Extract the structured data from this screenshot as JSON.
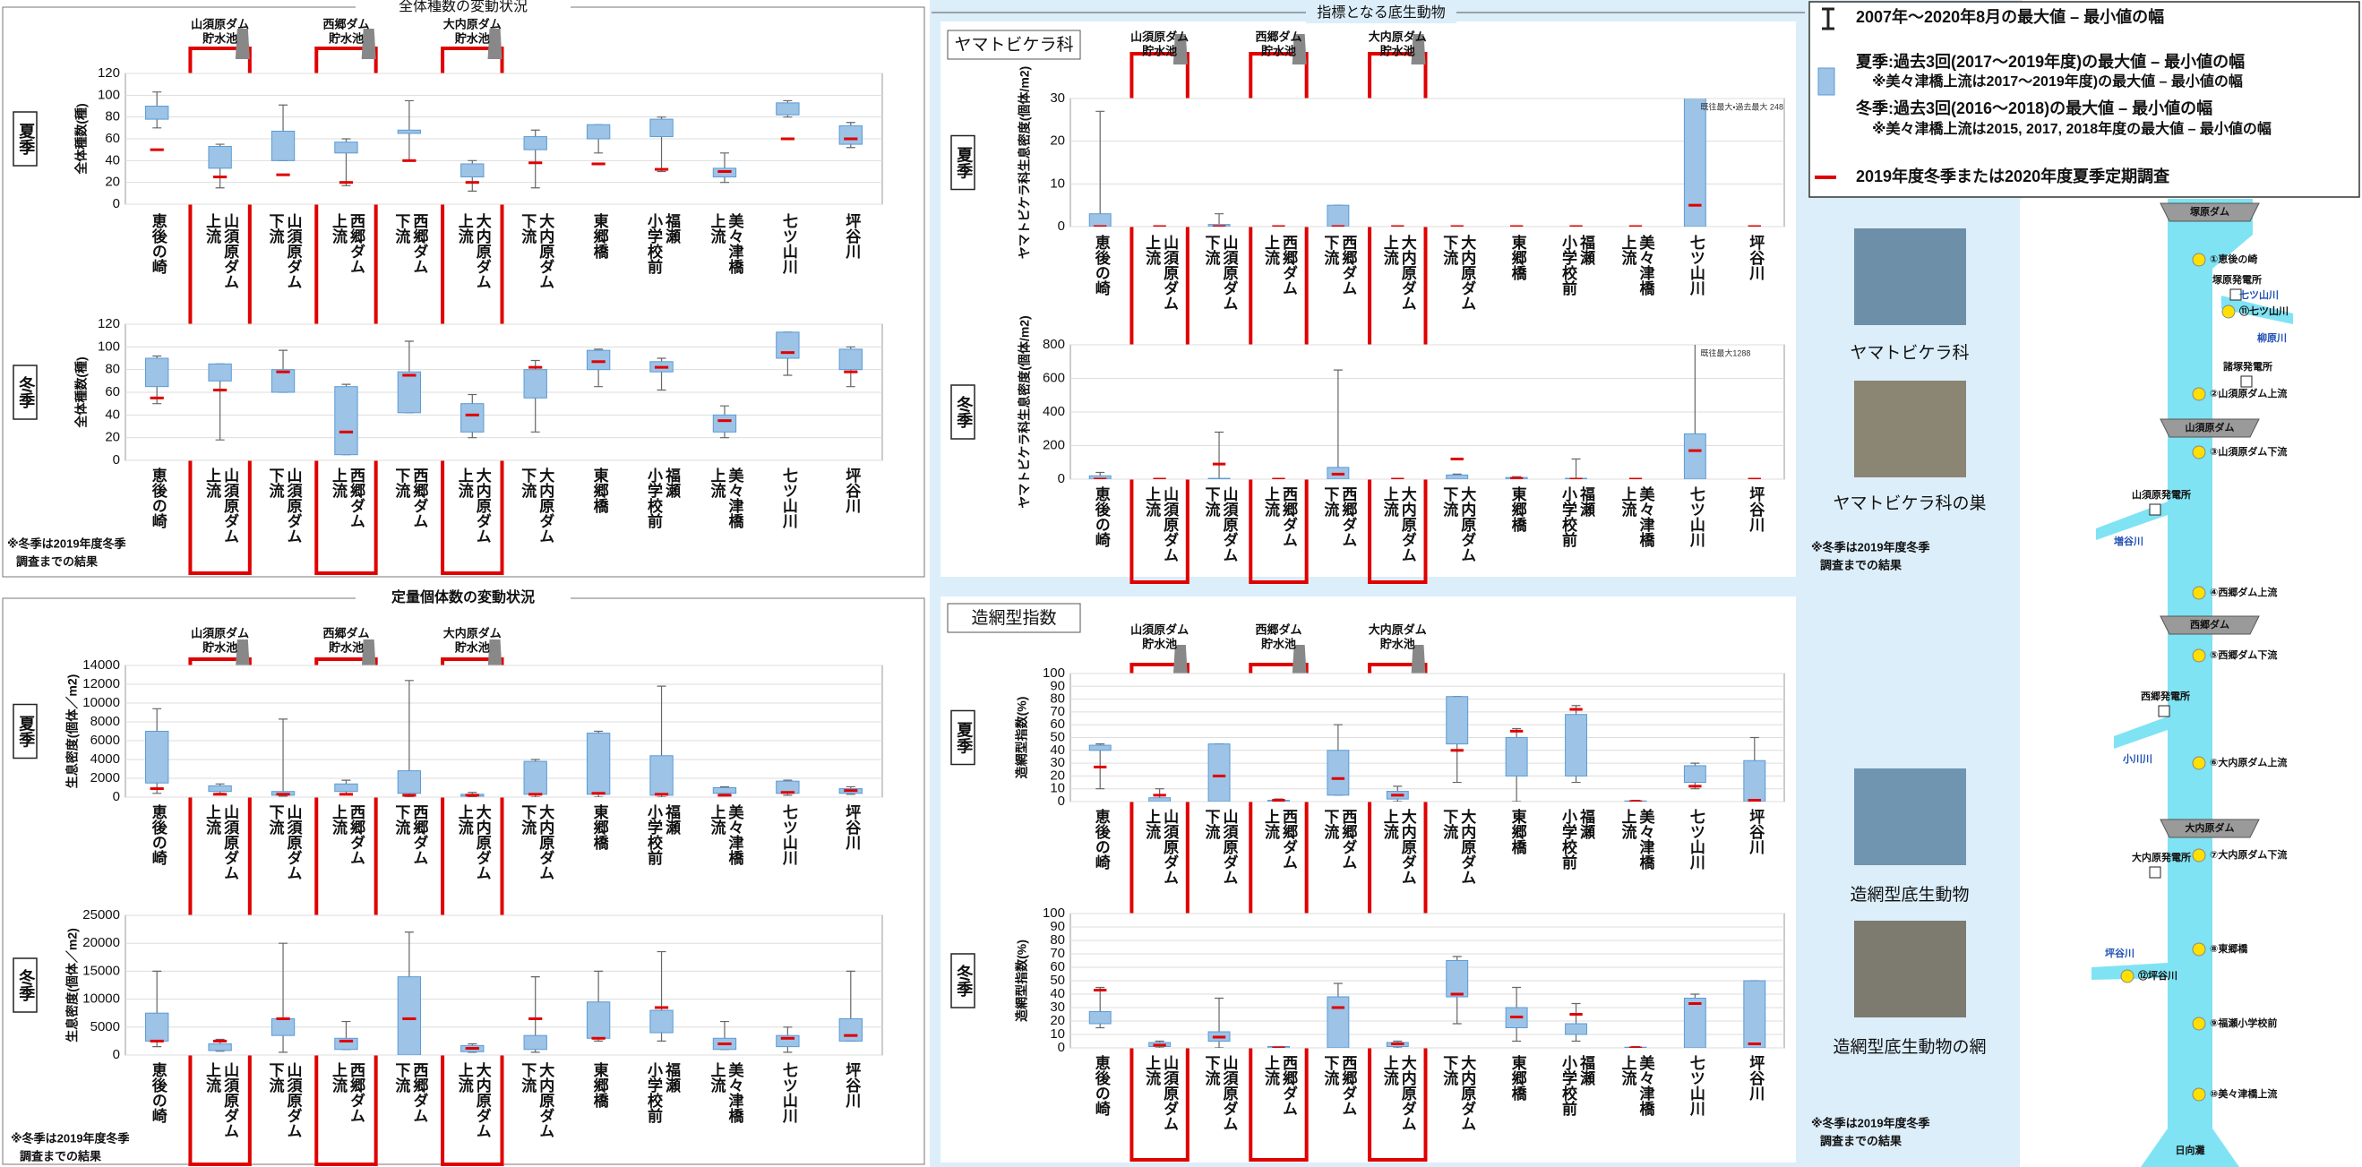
{
  "header": "指標となる底生動物",
  "groups": [
    {
      "title": "全体種数の変動状況",
      "reservoirs": [
        [
          "山須原ダム",
          "貯水池"
        ],
        [
          "西郷ダム",
          "貯水池"
        ],
        [
          "大内原ダム",
          "貯水池"
        ]
      ],
      "note": [
        "※冬季は2019年度冬季",
        "調査までの結果"
      ]
    },
    {
      "title": "定量個体数の変動状況",
      "reservoirs": [
        [
          "山須原ダム",
          "貯水池"
        ],
        [
          "西郷ダム",
          "貯水池"
        ],
        [
          "大内原ダム",
          "貯水池"
        ]
      ],
      "note": [
        "※冬季は2019年度冬季",
        "調査までの結果"
      ]
    },
    {
      "title": "ヤマトビケラ科",
      "reservoirs": [
        [
          "山須原ダム",
          "貯水池"
        ],
        [
          "西郷ダム",
          "貯水池"
        ],
        [
          "大内原ダム",
          "貯水池"
        ]
      ],
      "note": [
        "※冬季は2019年度冬季",
        "調査までの結果"
      ]
    },
    {
      "title": "造網型指数",
      "reservoirs": [
        [
          "山須原ダム",
          "貯水池"
        ],
        [
          "西郷ダム",
          "貯水池"
        ],
        [
          "大内原ダム",
          "貯水池"
        ]
      ],
      "note": [
        "※冬季は2019年度冬季",
        "調査までの結果"
      ]
    }
  ],
  "chart_data": [
    {
      "type": "range",
      "season": "夏季",
      "ylabel": "全体種数(種)",
      "categories": [
        [
          "恵後の崎"
        ],
        [
          "山須原ダム",
          "上流"
        ],
        [
          "山須原ダム",
          "下流"
        ],
        [
          "西郷ダム",
          "上流"
        ],
        [
          "西郷ダム",
          "下流"
        ],
        [
          "大内原ダム",
          "上流"
        ],
        [
          "大内原ダム",
          "下流"
        ],
        [
          "東郷橋"
        ],
        [
          "福瀬",
          "小学校前"
        ],
        [
          "美々津橋",
          "上流"
        ],
        [
          "七ツ山川"
        ],
        [
          "坪谷川"
        ]
      ],
      "ylim": [
        0,
        120
      ],
      "yticks": [
        0,
        20,
        40,
        60,
        80,
        100,
        120
      ],
      "grid": true,
      "min": [
        70,
        15,
        40,
        17,
        40,
        12,
        15,
        47,
        30,
        20,
        80,
        52
      ],
      "max": [
        103,
        55,
        91,
        60,
        95,
        40,
        68,
        73,
        80,
        47,
        95,
        75
      ],
      "low": [
        78,
        33,
        40,
        47,
        65,
        25,
        50,
        60,
        62,
        25,
        82,
        55
      ],
      "high": [
        90,
        53,
        67,
        57,
        68,
        37,
        62,
        73,
        78,
        33,
        93,
        72
      ],
      "current": [
        50,
        25,
        27,
        20,
        40,
        20,
        38,
        37,
        32,
        30,
        60,
        60
      ],
      "colors": {
        "box": "#9dc3e6",
        "box_edge": "#5b9bd5",
        "whisker": "#666666",
        "current": "#e00000"
      }
    },
    {
      "type": "range",
      "season": "冬季",
      "ylabel": "全体種数(種)",
      "categories": [
        [
          "恵後の崎"
        ],
        [
          "山須原ダム",
          "上流"
        ],
        [
          "山須原ダム",
          "下流"
        ],
        [
          "西郷ダム",
          "上流"
        ],
        [
          "西郷ダム",
          "下流"
        ],
        [
          "大内原ダム",
          "上流"
        ],
        [
          "大内原ダム",
          "下流"
        ],
        [
          "東郷橋"
        ],
        [
          "福瀬",
          "小学校前"
        ],
        [
          "美々津橋",
          "上流"
        ],
        [
          "七ツ山川"
        ],
        [
          "坪谷川"
        ]
      ],
      "ylim": [
        0,
        120
      ],
      "yticks": [
        0,
        20,
        40,
        60,
        80,
        100,
        120
      ],
      "grid": true,
      "min": [
        50,
        18,
        60,
        5,
        42,
        20,
        25,
        65,
        62,
        20,
        75,
        65
      ],
      "max": [
        92,
        85,
        97,
        67,
        105,
        58,
        88,
        98,
        90,
        48,
        113,
        100
      ],
      "low": [
        65,
        70,
        60,
        5,
        42,
        25,
        55,
        80,
        78,
        25,
        90,
        80
      ],
      "high": [
        90,
        85,
        80,
        65,
        78,
        50,
        80,
        97,
        87,
        40,
        113,
        98
      ],
      "current": [
        55,
        62,
        78,
        25,
        75,
        40,
        82,
        87,
        82,
        35,
        95,
        78
      ],
      "colors": {
        "box": "#9dc3e6",
        "box_edge": "#5b9bd5",
        "whisker": "#666666",
        "current": "#e00000"
      }
    },
    {
      "type": "range",
      "season": "夏季",
      "ylabel": "生息密度(個体／m2)",
      "categories": [
        [
          "恵後の崎"
        ],
        [
          "山須原ダム",
          "上流"
        ],
        [
          "山須原ダム",
          "下流"
        ],
        [
          "西郷ダム",
          "上流"
        ],
        [
          "西郷ダム",
          "下流"
        ],
        [
          "大内原ダム",
          "上流"
        ],
        [
          "大内原ダム",
          "下流"
        ],
        [
          "東郷橋"
        ],
        [
          "福瀬",
          "小学校前"
        ],
        [
          "美々津橋",
          "上流"
        ],
        [
          "七ツ山川"
        ],
        [
          "坪谷川"
        ]
      ],
      "ylim": [
        0,
        14000
      ],
      "yticks": [
        0,
        2000,
        4000,
        6000,
        8000,
        10000,
        12000,
        14000
      ],
      "grid": true,
      "min": [
        400,
        400,
        100,
        300,
        0,
        0,
        0,
        0,
        0,
        400,
        200,
        300
      ],
      "max": [
        9400,
        1400,
        8300,
        1800,
        12400,
        500,
        4000,
        7000,
        11800,
        1100,
        1800,
        1100
      ],
      "low": [
        1500,
        600,
        200,
        600,
        400,
        100,
        300,
        300,
        200,
        400,
        400,
        400
      ],
      "high": [
        7000,
        1200,
        600,
        1400,
        2800,
        300,
        3800,
        6800,
        4400,
        1000,
        1700,
        900
      ],
      "current": [
        900,
        300,
        300,
        300,
        200,
        200,
        300,
        400,
        300,
        200,
        500,
        700
      ],
      "colors": {
        "box": "#9dc3e6",
        "box_edge": "#5b9bd5",
        "whisker": "#666666",
        "current": "#e00000"
      }
    },
    {
      "type": "range",
      "season": "冬季",
      "ylabel": "生息密度(個体／m2)",
      "categories": [
        [
          "恵後の崎"
        ],
        [
          "山須原ダム",
          "上流"
        ],
        [
          "山須原ダム",
          "下流"
        ],
        [
          "西郷ダム",
          "上流"
        ],
        [
          "西郷ダム",
          "下流"
        ],
        [
          "大内原ダム",
          "上流"
        ],
        [
          "大内原ダム",
          "下流"
        ],
        [
          "東郷橋"
        ],
        [
          "福瀬",
          "小学校前"
        ],
        [
          "美々津橋",
          "上流"
        ],
        [
          "七ツ山川"
        ],
        [
          "坪谷川"
        ]
      ],
      "ylim": [
        0,
        25000
      ],
      "yticks": [
        0,
        5000,
        10000,
        15000,
        20000,
        25000
      ],
      "grid": true,
      "min": [
        1500,
        700,
        500,
        1000,
        500,
        500,
        500,
        2500,
        2500,
        1000,
        500,
        2500
      ],
      "max": [
        15000,
        2800,
        20000,
        6000,
        22000,
        2000,
        14000,
        15000,
        18500,
        6000,
        5000,
        15000
      ],
      "low": [
        2500,
        800,
        3500,
        1000,
        0,
        600,
        1000,
        3000,
        4000,
        1000,
        1500,
        2500
      ],
      "high": [
        7500,
        2000,
        6500,
        3000,
        14000,
        1700,
        3500,
        9500,
        8000,
        3000,
        3500,
        6500
      ],
      "current": [
        2500,
        2500,
        6500,
        2500,
        6500,
        1200,
        6500,
        3000,
        8500,
        2000,
        3000,
        3500
      ],
      "colors": {
        "box": "#9dc3e6",
        "box_edge": "#5b9bd5",
        "whisker": "#666666",
        "current": "#e00000"
      }
    },
    {
      "type": "range",
      "season": "夏季",
      "ylabel": "ヤマトビケラ科生息密度(個体/m2)",
      "categories": [
        [
          "恵後の崎"
        ],
        [
          "山須原ダム",
          "上流"
        ],
        [
          "山須原ダム",
          "下流"
        ],
        [
          "西郷ダム",
          "上流"
        ],
        [
          "西郷ダム",
          "下流"
        ],
        [
          "大内原ダム",
          "上流"
        ],
        [
          "大内原ダム",
          "下流"
        ],
        [
          "東郷橋"
        ],
        [
          "福瀬",
          "小学校前"
        ],
        [
          "美々津橋",
          "上流"
        ],
        [
          "七ツ山川"
        ],
        [
          "坪谷川"
        ]
      ],
      "ylim": [
        0,
        30
      ],
      "yticks": [
        0,
        10,
        20,
        30
      ],
      "grid": true,
      "min": [
        0,
        0,
        0,
        0,
        0,
        0,
        0,
        0,
        0,
        0,
        0,
        0
      ],
      "max": [
        27,
        0,
        3,
        0,
        5,
        0,
        0,
        0,
        0,
        0,
        248,
        0
      ],
      "low": [
        0,
        0,
        0,
        0,
        0,
        0,
        0,
        0,
        0,
        0,
        0,
        0
      ],
      "high": [
        3,
        0,
        0.5,
        0,
        5,
        0,
        0,
        0,
        0,
        0,
        248,
        0
      ],
      "current": [
        0,
        0,
        0,
        0,
        0,
        0,
        0,
        0,
        0,
        0,
        5,
        0
      ],
      "annotation": "既往最大・過去最大 248",
      "colors": {
        "box": "#9dc3e6",
        "box_edge": "#5b9bd5",
        "whisker": "#666666",
        "current": "#e00000"
      }
    },
    {
      "type": "range",
      "season": "冬季",
      "ylabel": "ヤマトビケラ科生息密度(個体/m2)",
      "categories": [
        [
          "恵後の崎"
        ],
        [
          "山須原ダム",
          "上流"
        ],
        [
          "山須原ダム",
          "下流"
        ],
        [
          "西郷ダム",
          "上流"
        ],
        [
          "西郷ダム",
          "下流"
        ],
        [
          "大内原ダム",
          "上流"
        ],
        [
          "大内原ダム",
          "下流"
        ],
        [
          "東郷橋"
        ],
        [
          "福瀬",
          "小学校前"
        ],
        [
          "美々津橋",
          "上流"
        ],
        [
          "七ツ山川"
        ],
        [
          "坪谷川"
        ]
      ],
      "ylim": [
        0,
        800
      ],
      "yticks": [
        0,
        200,
        400,
        600,
        800
      ],
      "grid": true,
      "min": [
        0,
        0,
        0,
        0,
        0,
        0,
        0,
        0,
        0,
        0,
        0,
        0
      ],
      "max": [
        40,
        0,
        280,
        0,
        650,
        0,
        30,
        15,
        120,
        0,
        1288,
        0
      ],
      "low": [
        0,
        0,
        0,
        0,
        0,
        0,
        0,
        0,
        0,
        0,
        0,
        0
      ],
      "high": [
        20,
        0,
        5,
        0,
        70,
        0,
        25,
        10,
        5,
        0,
        270,
        0
      ],
      "current": [
        0,
        0,
        90,
        0,
        30,
        0,
        120,
        5,
        0,
        0,
        170,
        0
      ],
      "annotation": "既往最大1288",
      "colors": {
        "box": "#9dc3e6",
        "box_edge": "#5b9bd5",
        "whisker": "#666666",
        "current": "#e00000"
      }
    },
    {
      "type": "range",
      "season": "夏季",
      "ylabel": "造網型指数(%)",
      "categories": [
        [
          "恵後の崎"
        ],
        [
          "山須原ダム",
          "上流"
        ],
        [
          "山須原ダム",
          "下流"
        ],
        [
          "西郷ダム",
          "上流"
        ],
        [
          "西郷ダム",
          "下流"
        ],
        [
          "大内原ダム",
          "上流"
        ],
        [
          "大内原ダム",
          "下流"
        ],
        [
          "東郷橋"
        ],
        [
          "福瀬",
          "小学校前"
        ],
        [
          "美々津橋",
          "上流"
        ],
        [
          "七ツ山川"
        ],
        [
          "坪谷川"
        ]
      ],
      "ylim": [
        0,
        100
      ],
      "yticks": [
        0,
        10,
        20,
        30,
        40,
        50,
        60,
        70,
        80,
        90,
        100
      ],
      "grid": true,
      "min": [
        10,
        0,
        0,
        0,
        5,
        0,
        15,
        0,
        15,
        0,
        10,
        0
      ],
      "max": [
        45,
        10,
        45,
        2,
        60,
        12,
        82,
        57,
        75,
        1,
        30,
        50
      ],
      "low": [
        40,
        0,
        0,
        0,
        5,
        2,
        45,
        20,
        20,
        0,
        15,
        0
      ],
      "high": [
        44,
        3,
        45,
        1,
        40,
        8,
        82,
        50,
        68,
        0.5,
        28,
        32
      ],
      "current": [
        27,
        5,
        20,
        1,
        18,
        5,
        40,
        55,
        72,
        0,
        12,
        1
      ],
      "colors": {
        "box": "#9dc3e6",
        "box_edge": "#5b9bd5",
        "whisker": "#666666",
        "current": "#e00000"
      }
    },
    {
      "type": "range",
      "season": "冬季",
      "ylabel": "造網型指数(%)",
      "categories": [
        [
          "恵後の崎"
        ],
        [
          "山須原ダム",
          "上流"
        ],
        [
          "山須原ダム",
          "下流"
        ],
        [
          "西郷ダム",
          "上流"
        ],
        [
          "西郷ダム",
          "下流"
        ],
        [
          "大内原ダム",
          "上流"
        ],
        [
          "大内原ダム",
          "下流"
        ],
        [
          "東郷橋"
        ],
        [
          "福瀬",
          "小学校前"
        ],
        [
          "美々津橋",
          "上流"
        ],
        [
          "七ツ山川"
        ],
        [
          "坪谷川"
        ]
      ],
      "ylim": [
        0,
        100
      ],
      "yticks": [
        0,
        10,
        20,
        30,
        40,
        50,
        60,
        70,
        80,
        90,
        100
      ],
      "grid": true,
      "min": [
        15,
        0,
        0,
        0,
        0,
        0,
        18,
        5,
        5,
        0,
        0,
        0
      ],
      "max": [
        45,
        5,
        37,
        1,
        48,
        5,
        68,
        45,
        33,
        1,
        40,
        50
      ],
      "low": [
        18,
        1,
        5,
        0,
        0,
        1,
        38,
        15,
        10,
        0,
        0,
        0
      ],
      "high": [
        27,
        4,
        12,
        1,
        38,
        4,
        65,
        30,
        18,
        0.5,
        37,
        50
      ],
      "current": [
        43,
        2,
        8,
        0,
        30,
        3,
        40,
        23,
        25,
        0,
        33,
        3
      ],
      "colors": {
        "box": "#9dc3e6",
        "box_edge": "#5b9bd5",
        "whisker": "#666666",
        "current": "#e00000"
      }
    }
  ],
  "legend": {
    "items": [
      [
        "2007年～2020年8月の最大値 – 最小値の幅"
      ],
      [
        "夏季:過去3回(2017～2019年度)の最大値 – 最小値の幅",
        "※美々津橋上流は2017～2019年度)の最大値 – 最小値の幅",
        "冬季:過去3回(2016～2018)の最大値 – 最小値の幅",
        "※美々津橋上流は2015, 2017, 2018年度の最大値 – 最小値の幅"
      ],
      [
        "2019年度冬季または2020年度夏季定期調査"
      ]
    ]
  },
  "photos": [
    "ヤマトビケラ科",
    "ヤマトビケラ科の巣",
    "造網型底生動物",
    "造網型底生動物の網"
  ],
  "map": {
    "labels": [
      "塚原ダム",
      "①恵後の崎",
      "塚原発電所",
      "七ツ山川",
      "⑪七ツ山川",
      "柳原川",
      "諸塚発電所",
      "②山須原ダム上流",
      "山須原ダム",
      "③山須原ダム下流",
      "山須原発電所",
      "増谷川",
      "④西郷ダム上流",
      "西郷ダム",
      "⑤西郷ダム下流",
      "西郷発電所",
      "小川川",
      "⑥大内原ダム上流",
      "大内原ダム",
      "大内原発電所",
      "⑦大内原ダム下流",
      "坪谷川",
      "⑫坪谷川",
      "⑧東郷橋",
      "⑨福瀬小学校前",
      "⑩美々津橋上流",
      "日向灘"
    ]
  }
}
